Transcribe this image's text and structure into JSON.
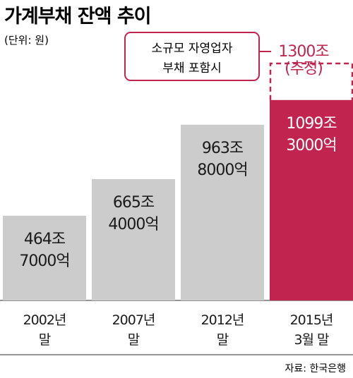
{
  "title": "가계부채 잔액 추이",
  "unit": "(단위: 원)",
  "source": "자료: 한국은행",
  "callout": {
    "line1": "소규모 자영업자",
    "line2": "부채 포함시",
    "value_line1": "1300조",
    "value_line2": "(추정)"
  },
  "colors": {
    "bar": "#cccccc",
    "highlight": "#c0244f",
    "callout_border": "#c0244f",
    "text": "#1a1a1a",
    "highlight_text": "#ffffff"
  },
  "chart_data": {
    "type": "bar",
    "categories": [
      [
        "2002년",
        "말"
      ],
      [
        "2007년",
        "말"
      ],
      [
        "2012년",
        "말"
      ],
      [
        "2015년",
        "3월 말"
      ]
    ],
    "values": [
      464.7,
      665.4,
      963.8,
      1099.3
    ],
    "labels": [
      [
        "464조",
        "7000억"
      ],
      [
        "665조",
        "4000억"
      ],
      [
        "963조",
        "8000억"
      ],
      [
        "1099조",
        "3000억"
      ]
    ],
    "estimate": {
      "category_index": 3,
      "value": 1300
    },
    "highlight_index": 3,
    "unit_label": "조원"
  }
}
